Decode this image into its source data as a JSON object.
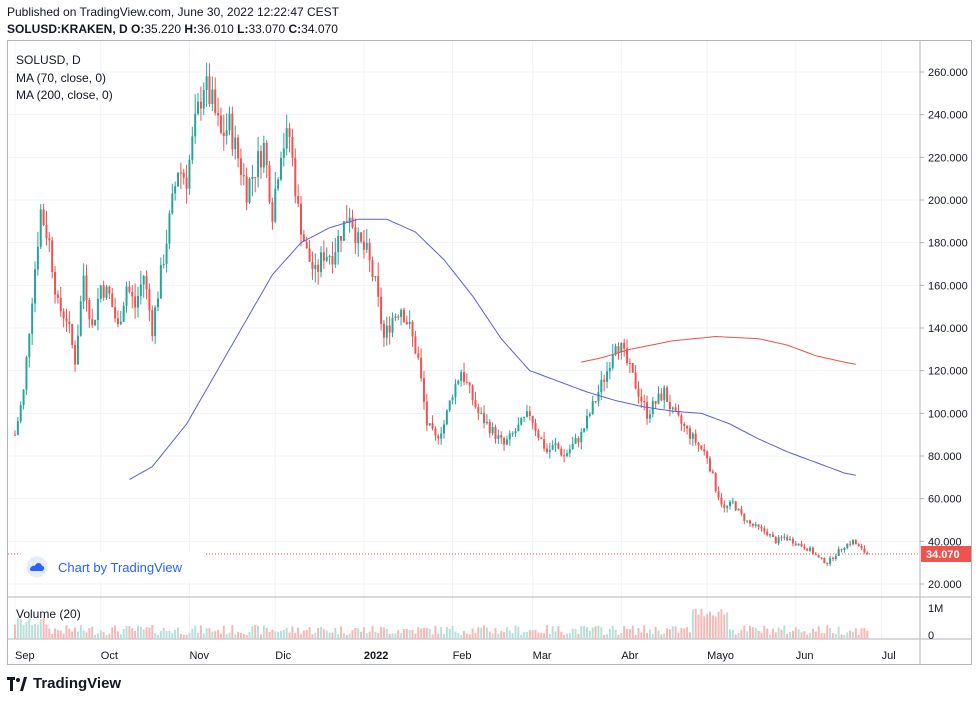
{
  "header": {
    "published": "Published on TradingView.com, June 30, 2022 12:22:47 CEST",
    "symbol": "SOLUSD:KRAKEN, D",
    "o_label": "O:",
    "o": "35.220",
    "h_label": "H:",
    "h": "36.010",
    "l_label": "L:",
    "l": "33.070",
    "c_label": "C:",
    "c": "34.070"
  },
  "legend": {
    "symbol": "SOLUSD, D",
    "ma70": "MA (70, close, 0)",
    "ma200": "MA (200, close, 0)",
    "volume": "Volume (20)"
  },
  "watermark": {
    "text": "Chart by TradingView",
    "icon": "tradingview-cloud-icon"
  },
  "footer": {
    "brand": "TradingView",
    "icon": "tradingview-logo-icon"
  },
  "colors": {
    "up": "#26a69a",
    "down": "#ef5350",
    "ma70": "#5b5fde",
    "ma200": "#e8514a",
    "vol_up": "#b8e0d9",
    "vol_down": "#f4b8b6",
    "last_price": "#ef5350"
  },
  "chart_data": {
    "type": "candlestick",
    "title": "SOLUSD:KRAKEN, D",
    "price_axis": {
      "min": 20,
      "max": 260,
      "ticks": [
        "260.000",
        "240.000",
        "220.000",
        "200.000",
        "180.000",
        "160.000",
        "140.000",
        "120.000",
        "100.000",
        "80.000",
        "60.000",
        "40.000",
        "20.000"
      ]
    },
    "volume_axis": {
      "ticks": [
        "1M",
        "0"
      ]
    },
    "x_ticks": [
      {
        "label": "Sep",
        "day": 0
      },
      {
        "label": "Oct",
        "day": 30
      },
      {
        "label": "Nov",
        "day": 61
      },
      {
        "label": "Dic",
        "day": 91
      },
      {
        "label": "2022",
        "day": 122,
        "bold": true
      },
      {
        "label": "Feb",
        "day": 153
      },
      {
        "label": "Mar",
        "day": 181
      },
      {
        "label": "Abr",
        "day": 212
      },
      {
        "label": "Mayo",
        "day": 242
      },
      {
        "label": "Jun",
        "day": 273
      },
      {
        "label": "Jul",
        "day": 303
      }
    ],
    "last_price": "34.070",
    "close_anchors": [
      [
        0,
        90
      ],
      [
        3,
        110
      ],
      [
        6,
        155
      ],
      [
        9,
        195
      ],
      [
        12,
        180
      ],
      [
        15,
        150
      ],
      [
        18,
        145
      ],
      [
        21,
        125
      ],
      [
        24,
        165
      ],
      [
        27,
        140
      ],
      [
        30,
        160
      ],
      [
        33,
        155
      ],
      [
        36,
        140
      ],
      [
        39,
        160
      ],
      [
        42,
        150
      ],
      [
        45,
        165
      ],
      [
        48,
        140
      ],
      [
        51,
        165
      ],
      [
        54,
        190
      ],
      [
        57,
        215
      ],
      [
        60,
        210
      ],
      [
        63,
        235
      ],
      [
        66,
        255
      ],
      [
        69,
        245
      ],
      [
        72,
        230
      ],
      [
        75,
        235
      ],
      [
        78,
        220
      ],
      [
        81,
        205
      ],
      [
        84,
        215
      ],
      [
        87,
        225
      ],
      [
        90,
        195
      ],
      [
        93,
        225
      ],
      [
        96,
        230
      ],
      [
        99,
        195
      ],
      [
        102,
        175
      ],
      [
        105,
        165
      ],
      [
        108,
        175
      ],
      [
        111,
        175
      ],
      [
        114,
        185
      ],
      [
        117,
        195
      ],
      [
        120,
        180
      ],
      [
        123,
        175
      ],
      [
        126,
        160
      ],
      [
        129,
        135
      ],
      [
        132,
        145
      ],
      [
        135,
        150
      ],
      [
        138,
        140
      ],
      [
        141,
        125
      ],
      [
        144,
        95
      ],
      [
        147,
        88
      ],
      [
        150,
        95
      ],
      [
        153,
        110
      ],
      [
        156,
        120
      ],
      [
        159,
        110
      ],
      [
        162,
        100
      ],
      [
        165,
        95
      ],
      [
        168,
        90
      ],
      [
        171,
        85
      ],
      [
        174,
        90
      ],
      [
        177,
        95
      ],
      [
        180,
        100
      ],
      [
        183,
        90
      ],
      [
        186,
        82
      ],
      [
        189,
        85
      ],
      [
        192,
        80
      ],
      [
        195,
        85
      ],
      [
        198,
        90
      ],
      [
        201,
        100
      ],
      [
        204,
        110
      ],
      [
        207,
        120
      ],
      [
        210,
        135
      ],
      [
        212,
        130
      ],
      [
        215,
        120
      ],
      [
        218,
        110
      ],
      [
        221,
        100
      ],
      [
        224,
        105
      ],
      [
        227,
        110
      ],
      [
        230,
        100
      ],
      [
        233,
        95
      ],
      [
        236,
        90
      ],
      [
        239,
        85
      ],
      [
        242,
        80
      ],
      [
        245,
        65
      ],
      [
        248,
        55
      ],
      [
        251,
        58
      ],
      [
        254,
        52
      ],
      [
        257,
        48
      ],
      [
        260,
        46
      ],
      [
        263,
        44
      ],
      [
        266,
        40
      ],
      [
        269,
        42
      ],
      [
        272,
        40
      ],
      [
        275,
        38
      ],
      [
        278,
        36
      ],
      [
        281,
        32
      ],
      [
        284,
        30
      ],
      [
        287,
        34
      ],
      [
        290,
        38
      ],
      [
        293,
        40
      ],
      [
        296,
        36
      ],
      [
        298,
        34.07
      ]
    ],
    "ma70_anchors": [
      [
        40,
        69
      ],
      [
        48,
        75
      ],
      [
        60,
        95
      ],
      [
        75,
        130
      ],
      [
        90,
        165
      ],
      [
        100,
        180
      ],
      [
        110,
        187
      ],
      [
        120,
        191
      ],
      [
        130,
        191
      ],
      [
        140,
        185
      ],
      [
        150,
        172
      ],
      [
        160,
        155
      ],
      [
        170,
        135
      ],
      [
        180,
        120
      ],
      [
        190,
        115
      ],
      [
        200,
        110
      ],
      [
        210,
        106
      ],
      [
        220,
        103
      ],
      [
        230,
        101
      ],
      [
        240,
        100
      ],
      [
        250,
        95
      ],
      [
        260,
        88
      ],
      [
        270,
        82
      ],
      [
        280,
        77
      ],
      [
        290,
        72
      ],
      [
        294,
        71
      ]
    ],
    "ma200_anchors": [
      [
        198,
        124
      ],
      [
        205,
        126
      ],
      [
        215,
        130
      ],
      [
        230,
        134
      ],
      [
        245,
        136
      ],
      [
        260,
        135
      ],
      [
        270,
        132
      ],
      [
        280,
        127
      ],
      [
        290,
        124
      ],
      [
        294,
        123
      ]
    ]
  }
}
